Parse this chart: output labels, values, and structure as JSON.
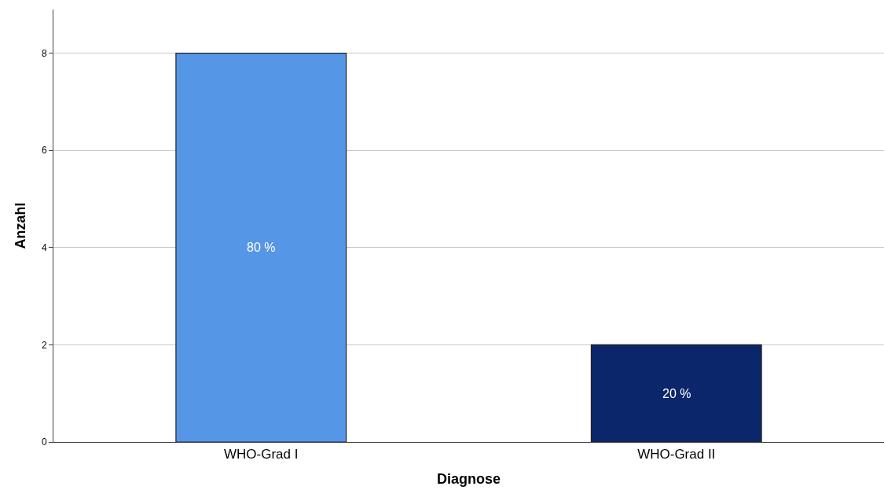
{
  "chart_data": {
    "type": "bar",
    "xlabel": "Diagnose",
    "ylabel": "Anzahl",
    "categories": [
      "WHO-Grad I",
      "WHO-Grad II"
    ],
    "values": [
      8,
      2
    ],
    "colors": [
      "#5596e6",
      "#0b266b"
    ],
    "annotations": [
      "80 %",
      "20 %"
    ],
    "ylim": [
      0,
      8.9
    ],
    "yticks": [
      0,
      2,
      4,
      6,
      8
    ],
    "grid": "y"
  }
}
